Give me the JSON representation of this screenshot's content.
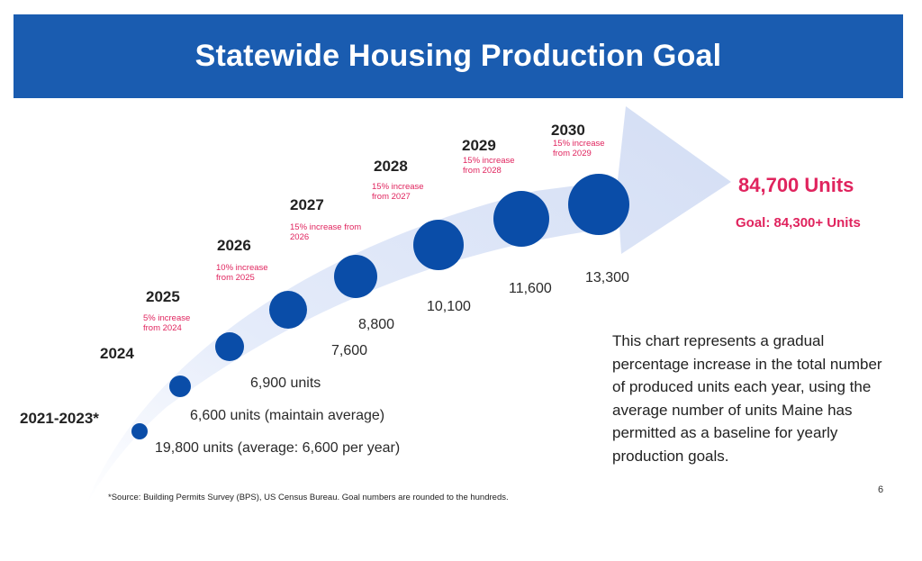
{
  "title": "Statewide Housing Production Goal",
  "chart_data": {
    "type": "scatter",
    "categories": [
      "2021-2023*",
      "2024",
      "2025",
      "2026",
      "2027",
      "2028",
      "2029",
      "2030"
    ],
    "values": [
      19800,
      6600,
      6900,
      7600,
      8800,
      10100,
      11600,
      13300
    ],
    "value_labels": [
      "19,800 units (average: 6,600 per year)",
      "6,600 units (maintain average)",
      "6,900 units",
      "7,600",
      "8,800",
      "10,100",
      "11,600",
      "13,300"
    ],
    "increase_labels": [
      "",
      "",
      "5% increase from 2024",
      "10% increase from 2025",
      "15% increase from 2026",
      "15% increase from 2027",
      "15% increase from 2028",
      "15% increase from 2029"
    ],
    "total": "84,700 Units",
    "goal": "Goal: 84,300+ Units",
    "colors": {
      "banner": "#1a5cb0",
      "dots": "#0a4da8",
      "arrow": "#dde6f8",
      "highlight": "#e0245e"
    }
  },
  "description": "This chart represents a gradual percentage increase in the total number of produced units each year, using the average number of units Maine has permitted as a baseline for yearly production goals.",
  "source": "*Source: Building Permits Survey (BPS), US Census Bureau. Goal numbers are rounded to the hundreds.",
  "page_number": "6"
}
